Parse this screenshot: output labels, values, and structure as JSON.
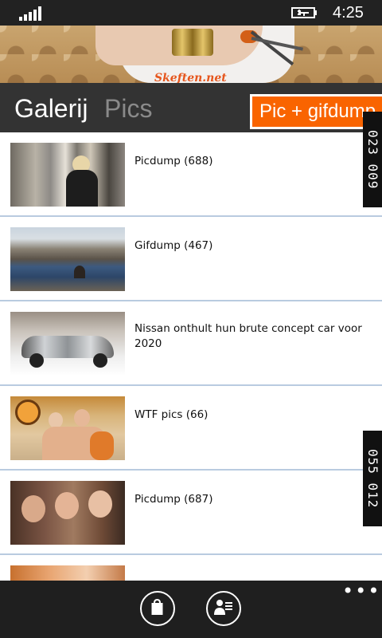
{
  "status_bar": {
    "time": "4:25"
  },
  "banner": {
    "logo_text": "Skeften.net"
  },
  "header": {
    "pivot_active": "Galerij",
    "pivot_inactive": "Pics",
    "badge_label": "Pic + gifdump"
  },
  "side_tabs": [
    {
      "label": "023 009"
    },
    {
      "label": "055 012"
    }
  ],
  "list": {
    "items": [
      {
        "title": "Picdump (688)",
        "thumb": "woman-at-window-photo"
      },
      {
        "title": "Gifdump (467)",
        "thumb": "rock-pool-landscape-photo"
      },
      {
        "title": "Nissan onthult hun brute concept car voor 2020",
        "thumb": "silver-concept-car-photo"
      },
      {
        "title": "WTF pics (66)",
        "thumb": "people-on-couch-photo"
      },
      {
        "title": "Picdump (687)",
        "thumb": "three-women-selfie-photo"
      },
      {
        "title": "",
        "thumb": "partial-photo"
      }
    ]
  },
  "app_bar": {
    "buttons": [
      {
        "icon": "shopping-bag-icon"
      },
      {
        "icon": "profile-list-icon"
      }
    ],
    "more": "•••"
  },
  "colors": {
    "accent": "#f96400",
    "header_bg": "#333333",
    "divider": "#b9cbe0"
  }
}
